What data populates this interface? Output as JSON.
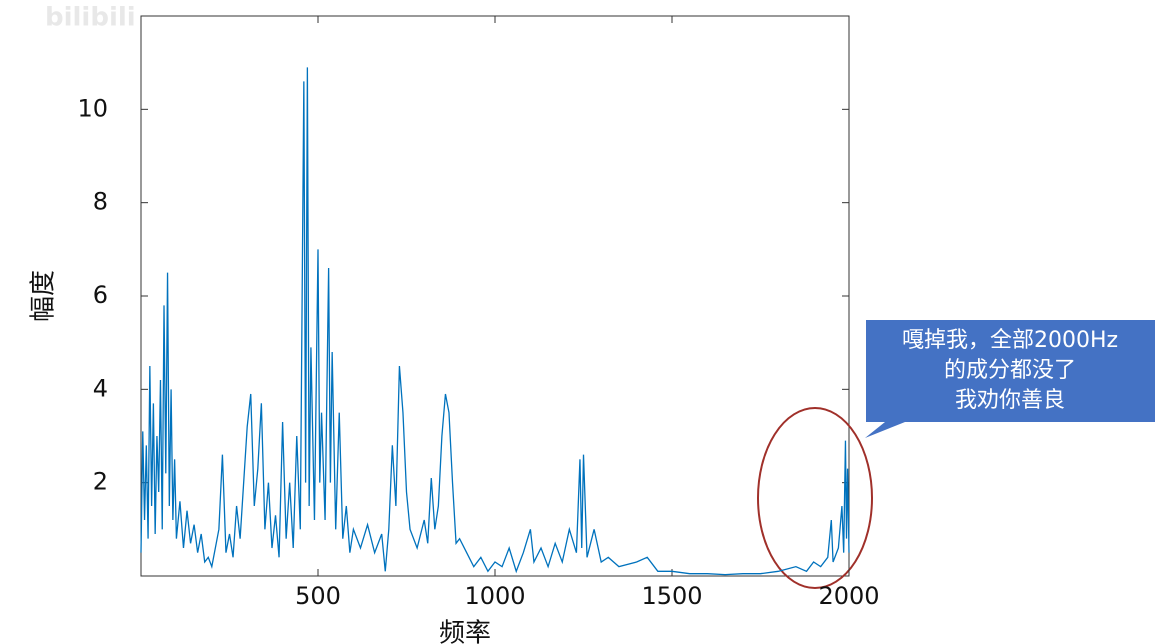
{
  "chart_data": {
    "type": "line",
    "watermark": "bilibili",
    "xlabel": "频率",
    "ylabel": "幅度",
    "annotation": [
      "嘎掉我，全部2000Hz",
      "的成分都没了",
      "我劝你善良"
    ],
    "xlim": [
      0,
      2000
    ],
    "ylim": [
      0,
      12
    ],
    "xticks": [
      500,
      1000,
      1500,
      2000
    ],
    "yticks": [
      2,
      4,
      6,
      8,
      10
    ],
    "series": [
      {
        "color": "#0072bd",
        "x": [
          0,
          5,
          10,
          15,
          20,
          25,
          30,
          35,
          40,
          45,
          50,
          55,
          60,
          65,
          70,
          75,
          80,
          85,
          90,
          95,
          100,
          110,
          120,
          130,
          140,
          150,
          160,
          170,
          180,
          190,
          200,
          210,
          220,
          230,
          240,
          250,
          260,
          270,
          280,
          300,
          310,
          320,
          330,
          340,
          350,
          360,
          370,
          380,
          390,
          400,
          410,
          420,
          430,
          440,
          450,
          460,
          465,
          470,
          475,
          480,
          490,
          500,
          505,
          510,
          520,
          530,
          535,
          540,
          550,
          560,
          570,
          580,
          590,
          600,
          620,
          640,
          660,
          680,
          690,
          700,
          710,
          720,
          730,
          740,
          750,
          760,
          780,
          800,
          810,
          820,
          830,
          840,
          850,
          860,
          870,
          880,
          890,
          900,
          920,
          940,
          960,
          980,
          1000,
          1020,
          1040,
          1060,
          1080,
          1100,
          1110,
          1130,
          1150,
          1170,
          1190,
          1210,
          1230,
          1240,
          1245,
          1250,
          1260,
          1280,
          1300,
          1320,
          1350,
          1400,
          1430,
          1460,
          1500,
          1550,
          1600,
          1650,
          1700,
          1750,
          1800,
          1850,
          1880,
          1900,
          1920,
          1940,
          1950,
          1955,
          1970,
          1980,
          1985,
          1990,
          1993,
          1996,
          2000
        ],
        "values": [
          0.5,
          3.1,
          1.2,
          2.8,
          0.8,
          4.5,
          1.5,
          3.7,
          0.9,
          3.0,
          1.8,
          4.2,
          1.0,
          5.8,
          2.2,
          6.5,
          1.5,
          4.0,
          1.2,
          2.5,
          0.8,
          1.6,
          0.6,
          1.4,
          0.7,
          1.1,
          0.5,
          0.9,
          0.3,
          0.4,
          0.2,
          0.6,
          1.0,
          2.6,
          0.5,
          0.9,
          0.4,
          1.5,
          0.8,
          3.2,
          3.9,
          1.5,
          2.3,
          3.7,
          1.0,
          2.0,
          0.6,
          1.3,
          0.4,
          3.3,
          0.8,
          2.0,
          0.6,
          3.0,
          1.0,
          10.6,
          2.0,
          10.9,
          1.5,
          4.9,
          1.2,
          7.0,
          2.0,
          3.5,
          1.2,
          6.6,
          2.0,
          4.8,
          1.0,
          3.5,
          0.8,
          1.5,
          0.5,
          1.0,
          0.6,
          1.1,
          0.5,
          0.9,
          0.1,
          1.0,
          2.8,
          1.5,
          4.5,
          3.5,
          1.8,
          1.0,
          0.6,
          1.2,
          0.7,
          2.1,
          1.0,
          1.5,
          3.0,
          3.9,
          3.5,
          2.0,
          0.7,
          0.8,
          0.5,
          0.2,
          0.4,
          0.1,
          0.3,
          0.2,
          0.6,
          0.1,
          0.5,
          1.0,
          0.3,
          0.6,
          0.2,
          0.7,
          0.3,
          1.0,
          0.5,
          2.5,
          0.6,
          2.6,
          0.4,
          1.0,
          0.3,
          0.4,
          0.2,
          0.3,
          0.4,
          0.1,
          0.1,
          0.05,
          0.05,
          0.03,
          0.05,
          0.05,
          0.1,
          0.2,
          0.1,
          0.3,
          0.2,
          0.4,
          1.2,
          0.3,
          0.6,
          1.5,
          0.5,
          2.9,
          0.8,
          2.3,
          0.5
        ]
      }
    ]
  }
}
